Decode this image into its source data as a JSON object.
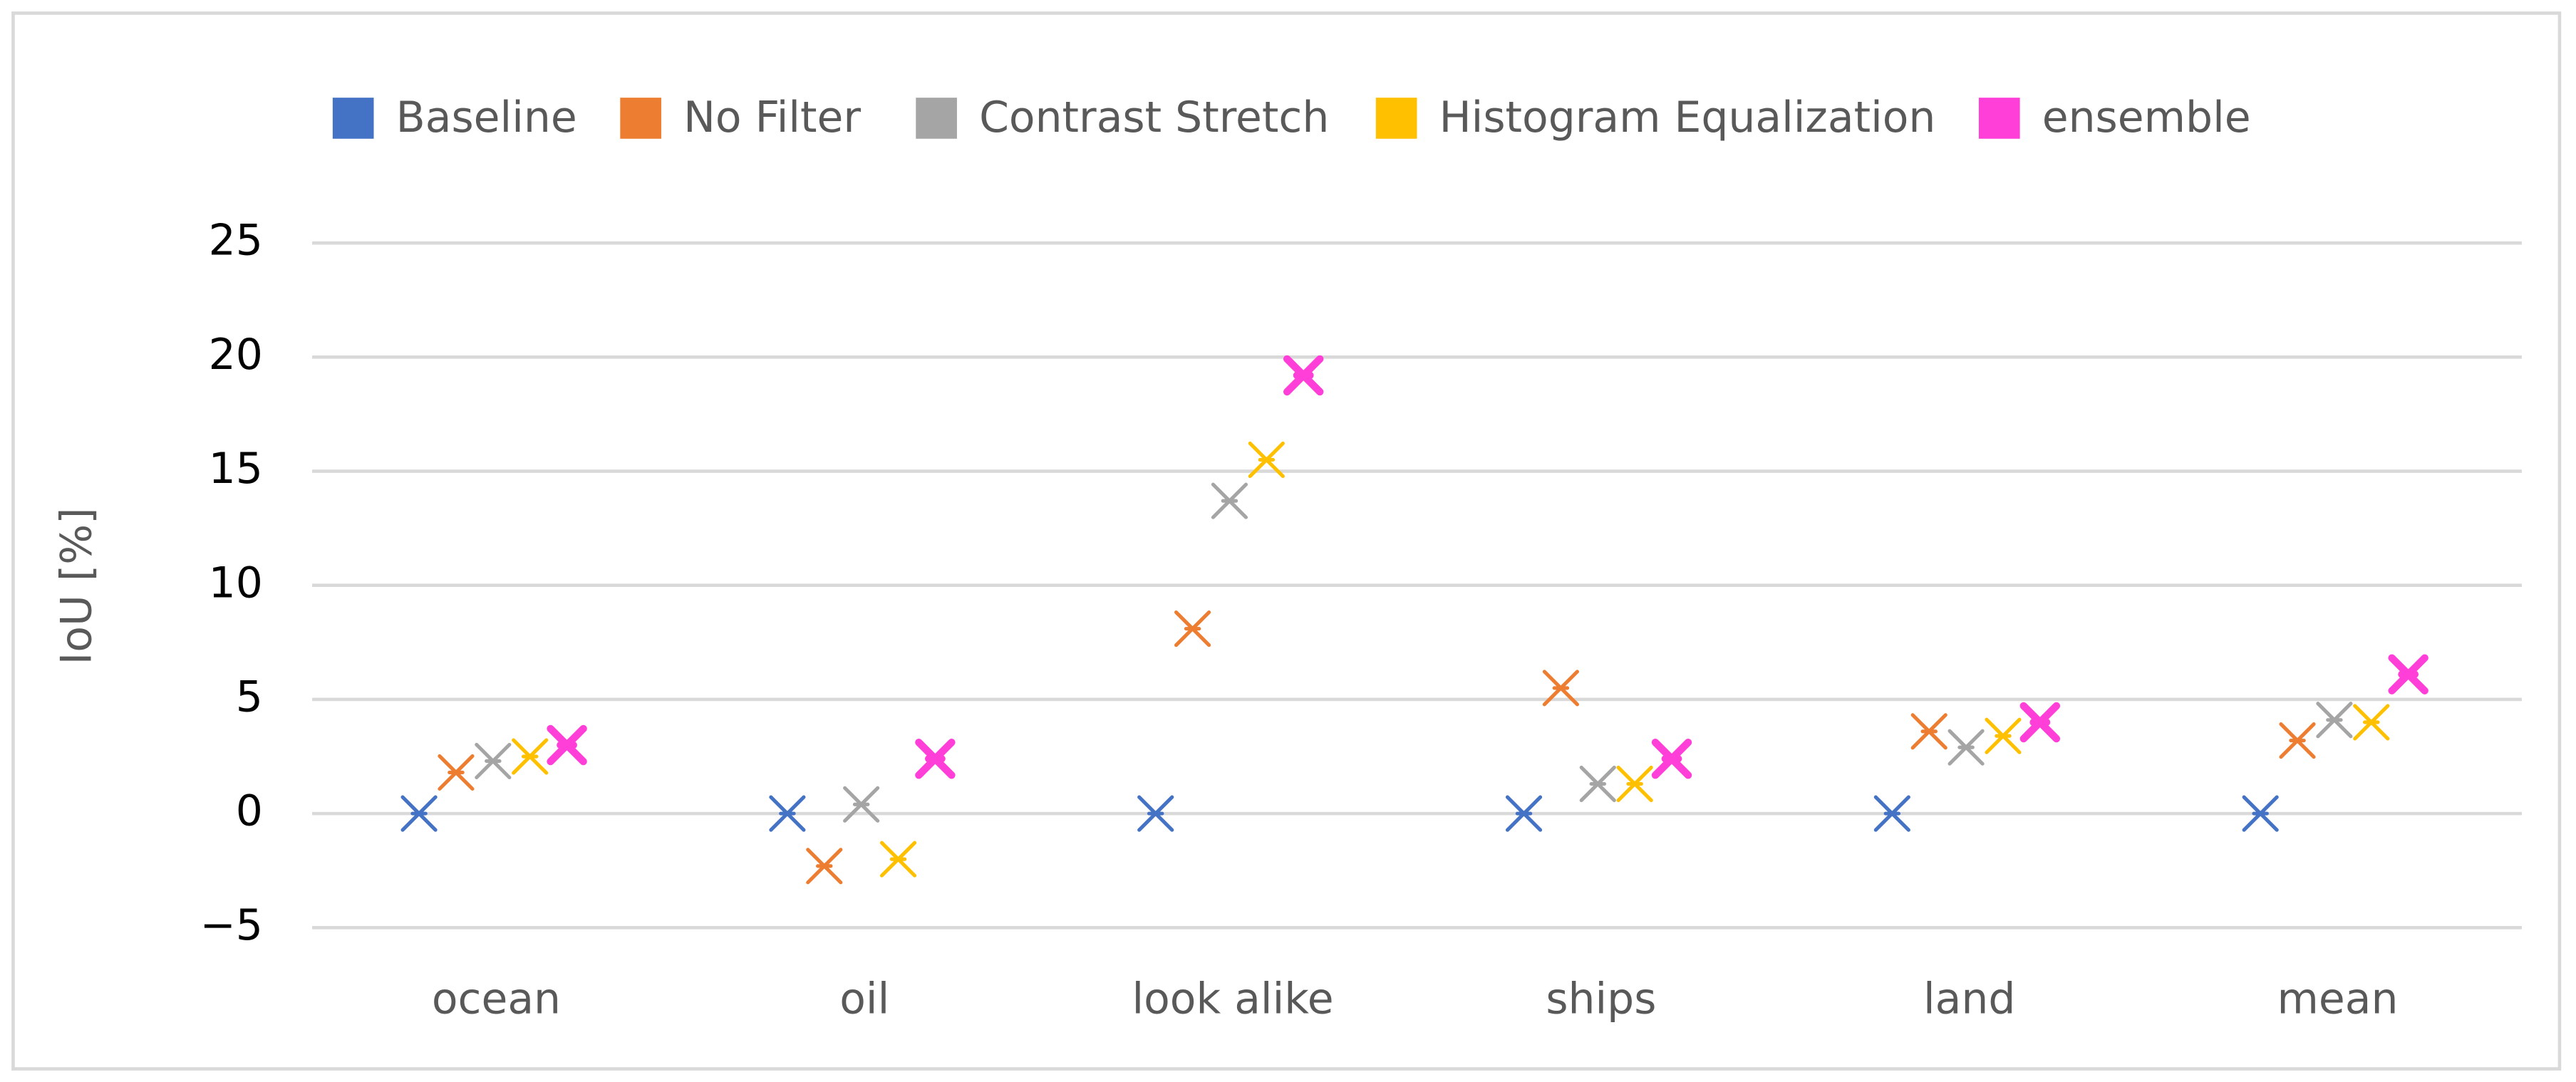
{
  "chart_data": {
    "type": "scatter",
    "y_label": "IoU [%]",
    "categories": [
      "ocean",
      "oil",
      "look alike",
      "ships",
      "land",
      "mean"
    ],
    "series": [
      {
        "name": "Baseline",
        "color": "#4472c4",
        "values": [
          0,
          0,
          0,
          0,
          0,
          0
        ]
      },
      {
        "name": "No Filter",
        "color": "#ed7d31",
        "values": [
          1.8,
          -2.3,
          8.1,
          5.5,
          3.6,
          3.2
        ]
      },
      {
        "name": "Contrast Stretch",
        "color": "#a5a5a5",
        "values": [
          2.3,
          0.4,
          13.7,
          1.3,
          2.9,
          4.1
        ]
      },
      {
        "name": "Histogram Equalization",
        "color": "#ffc000",
        "values": [
          2.5,
          -2.0,
          15.5,
          1.3,
          3.4,
          4.0
        ]
      },
      {
        "name": "ensemble",
        "color": "#ff3fd8",
        "values": [
          3.0,
          2.4,
          19.2,
          2.4,
          4.0,
          6.1
        ]
      }
    ],
    "ylim": [
      -5,
      25
    ],
    "yticks": [
      {
        "value": -5,
        "label": "−5"
      },
      0,
      5,
      10,
      15,
      20,
      25
    ],
    "grid": true,
    "legend": "top"
  }
}
